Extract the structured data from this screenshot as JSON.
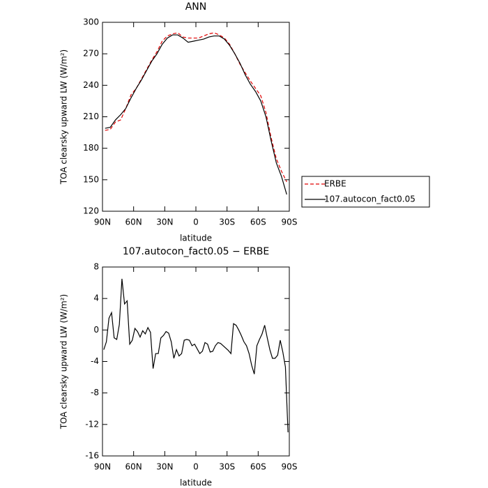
{
  "chart_data": [
    {
      "type": "line",
      "title": "ANN",
      "xlabel": "latitude",
      "ylabel": "TOA clearsky upward LW (W/m²)",
      "x": [
        87.5,
        82.5,
        77.5,
        72.5,
        67.5,
        62.5,
        57.5,
        52.5,
        47.5,
        42.5,
        37.5,
        32.5,
        27.5,
        22.5,
        17.5,
        12.5,
        7.5,
        2.5,
        -2.5,
        -7.5,
        -12.5,
        -17.5,
        -22.5,
        -27.5,
        -32.5,
        -37.5,
        -42.5,
        -47.5,
        -52.5,
        -57.5,
        -62.5,
        -67.5,
        -72.5,
        -77.5,
        -82.5,
        -87.5
      ],
      "series": [
        {
          "name": "ERBE",
          "color": "#e00000",
          "style": "dashed",
          "values": [
            197,
            198,
            205,
            207,
            218,
            231,
            237,
            246,
            255,
            264,
            272,
            282,
            287,
            289,
            290,
            286,
            285,
            285,
            285,
            287,
            289,
            290,
            288,
            285,
            279,
            270,
            260,
            252,
            244,
            237,
            230,
            214,
            190,
            170,
            158,
            148
          ]
        },
        {
          "name": "107.autocon_fact0.05",
          "color": "#000000",
          "style": "solid",
          "values": [
            199,
            200,
            207,
            212,
            218,
            228,
            237,
            245,
            254,
            263,
            270,
            279,
            285,
            288,
            288,
            285,
            281,
            282,
            283,
            284,
            286,
            287,
            287,
            284,
            278,
            270,
            261,
            250,
            241,
            234,
            225,
            210,
            187,
            166,
            153,
            136
          ]
        }
      ],
      "xlim": [
        90,
        -90
      ],
      "xticks": [
        {
          "value": 90,
          "label": "90N"
        },
        {
          "value": 60,
          "label": "60N"
        },
        {
          "value": 30,
          "label": "30N"
        },
        0,
        {
          "value": -30,
          "label": "30S"
        },
        {
          "value": -60,
          "label": "60S"
        },
        {
          "value": -90,
          "label": "90S"
        }
      ],
      "ylim": [
        120,
        300
      ],
      "yticks": [
        120,
        150,
        180,
        210,
        240,
        270,
        300
      ],
      "legend": "right"
    },
    {
      "type": "line",
      "title": "107.autocon_fact0.05 − ERBE",
      "xlabel": "latitude",
      "ylabel": "TOA clearsky upward LW (W/m²)",
      "x": [
        88.75,
        86.25,
        83.75,
        81.25,
        78.75,
        76.25,
        73.75,
        71.25,
        68.75,
        66.25,
        63.75,
        61.25,
        58.75,
        56.25,
        53.75,
        51.25,
        48.75,
        46.25,
        43.75,
        41.25,
        38.75,
        36.25,
        33.75,
        31.25,
        28.75,
        26.25,
        23.75,
        21.25,
        18.75,
        16.25,
        13.75,
        11.25,
        8.75,
        6.25,
        3.75,
        1.25,
        -1.25,
        -3.75,
        -6.25,
        -8.75,
        -11.25,
        -13.75,
        -16.25,
        -18.75,
        -21.25,
        -23.75,
        -26.25,
        -28.75,
        -31.25,
        -33.75,
        -36.25,
        -38.75,
        -41.25,
        -43.75,
        -46.25,
        -48.75,
        -51.25,
        -53.75,
        -56.25,
        -58.75,
        -61.25,
        -63.75,
        -66.25,
        -68.75,
        -71.25,
        -73.75,
        -76.25,
        -78.75,
        -81.25,
        -83.75,
        -86.25,
        -88.75
      ],
      "series": [
        {
          "name": "107.autocon_fact0.05",
          "color": "#000000",
          "style": "solid",
          "values": [
            -2.5,
            -1.5,
            1.5,
            2.2,
            -1,
            -1.2,
            0.7,
            6.5,
            3.3,
            3.7,
            -1.8,
            -1.3,
            0.2,
            -0.2,
            -0.9,
            -0.1,
            -0.5,
            0.3,
            -0.3,
            -4.9,
            -3,
            -3,
            -1,
            -0.7,
            -0.2,
            -0.4,
            -1.5,
            -3.6,
            -2.5,
            -3.3,
            -3,
            -1.3,
            -1.2,
            -1.3,
            -2,
            -1.8,
            -2.4,
            -3,
            -2.7,
            -1.6,
            -1.8,
            -2.8,
            -2.7,
            -2,
            -1.6,
            -1.7,
            -2,
            -2.3,
            -2.6,
            -3,
            0.8,
            0.6,
            0,
            -0.7,
            -1.5,
            -2,
            -3,
            -4.5,
            -5.6,
            -2,
            -1.2,
            -0.5,
            0.6,
            -1,
            -2.5,
            -3.6,
            -3.6,
            -3.2,
            -1.3,
            -2.8,
            -4.7,
            -13
          ]
        }
      ],
      "xlim": [
        90,
        -90
      ],
      "xticks": [
        {
          "value": 90,
          "label": "90N"
        },
        {
          "value": 60,
          "label": "60N"
        },
        {
          "value": 30,
          "label": "30N"
        },
        0,
        {
          "value": -30,
          "label": "30S"
        },
        {
          "value": -60,
          "label": "60S"
        },
        {
          "value": -90,
          "label": "90S"
        }
      ],
      "ylim": [
        -16,
        8
      ],
      "yticks": [
        -16,
        -12,
        -8,
        -4,
        0,
        4,
        8
      ]
    }
  ]
}
